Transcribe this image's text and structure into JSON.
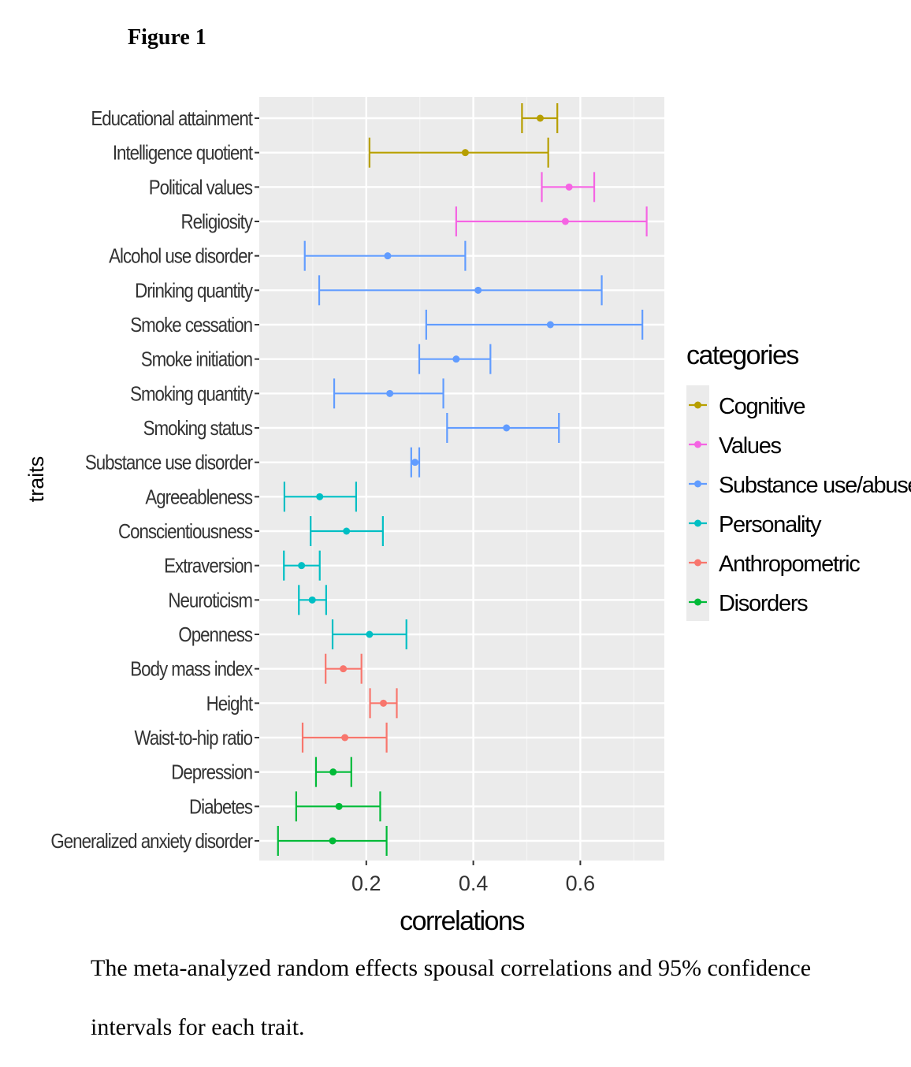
{
  "figure_title": "Figure 1",
  "caption_line1": "The meta-analyzed random effects spousal correlations and 95% confidence",
  "caption_line2": "intervals for each trait.",
  "chart_data": {
    "type": "forest",
    "xlabel": "correlations",
    "ylabel": "traits",
    "xlim": [
      0.0,
      0.757
    ],
    "xticks": [
      0.2,
      0.4,
      0.6
    ],
    "xtick_labels": [
      "0.2",
      "0.4",
      "0.6"
    ],
    "grid": true,
    "legend": {
      "title": "categories",
      "position": "right",
      "entries": [
        {
          "name": "Cognitive",
          "color": "#B79F00"
        },
        {
          "name": "Values",
          "color": "#F564E3"
        },
        {
          "name": "Substance use/abuse",
          "color": "#619CFF"
        },
        {
          "name": "Personality",
          "color": "#00BFC4"
        },
        {
          "name": "Anthropometric",
          "color": "#F8766D"
        },
        {
          "name": "Disorders",
          "color": "#00BA38"
        }
      ]
    },
    "rows": [
      {
        "trait": "Educational attainment",
        "category": "Cognitive",
        "estimate": 0.525,
        "lower": 0.491,
        "upper": 0.557
      },
      {
        "trait": "Intelligence quotient",
        "category": "Cognitive",
        "estimate": 0.385,
        "lower": 0.206,
        "upper": 0.54
      },
      {
        "trait": "Political values",
        "category": "Values",
        "estimate": 0.579,
        "lower": 0.528,
        "upper": 0.626
      },
      {
        "trait": "Religiosity",
        "category": "Values",
        "estimate": 0.572,
        "lower": 0.368,
        "upper": 0.724
      },
      {
        "trait": "Alcohol use disorder",
        "category": "Substance use/abuse",
        "estimate": 0.24,
        "lower": 0.085,
        "upper": 0.385
      },
      {
        "trait": "Drinking quantity",
        "category": "Substance use/abuse",
        "estimate": 0.409,
        "lower": 0.112,
        "upper": 0.64
      },
      {
        "trait": "Smoke cessation",
        "category": "Substance use/abuse",
        "estimate": 0.544,
        "lower": 0.312,
        "upper": 0.716
      },
      {
        "trait": "Smoke initiation",
        "category": "Substance use/abuse",
        "estimate": 0.368,
        "lower": 0.299,
        "upper": 0.432
      },
      {
        "trait": "Smoking quantity",
        "category": "Substance use/abuse",
        "estimate": 0.244,
        "lower": 0.14,
        "upper": 0.344
      },
      {
        "trait": "Smoking status",
        "category": "Substance use/abuse",
        "estimate": 0.462,
        "lower": 0.351,
        "upper": 0.56
      },
      {
        "trait": "Substance use disorder",
        "category": "Substance use/abuse",
        "estimate": 0.291,
        "lower": 0.284,
        "upper": 0.299
      },
      {
        "trait": "Agreeableness",
        "category": "Personality",
        "estimate": 0.113,
        "lower": 0.047,
        "upper": 0.181
      },
      {
        "trait": "Conscientiousness",
        "category": "Personality",
        "estimate": 0.163,
        "lower": 0.096,
        "upper": 0.231
      },
      {
        "trait": "Extraversion",
        "category": "Personality",
        "estimate": 0.079,
        "lower": 0.046,
        "upper": 0.113
      },
      {
        "trait": "Neuroticism",
        "category": "Personality",
        "estimate": 0.099,
        "lower": 0.074,
        "upper": 0.125
      },
      {
        "trait": "Openness",
        "category": "Personality",
        "estimate": 0.206,
        "lower": 0.137,
        "upper": 0.275
      },
      {
        "trait": "Body mass index",
        "category": "Anthropometric",
        "estimate": 0.157,
        "lower": 0.124,
        "upper": 0.191
      },
      {
        "trait": "Height",
        "category": "Anthropometric",
        "estimate": 0.232,
        "lower": 0.207,
        "upper": 0.257
      },
      {
        "trait": "Waist-to-hip ratio",
        "category": "Anthropometric",
        "estimate": 0.16,
        "lower": 0.081,
        "upper": 0.238
      },
      {
        "trait": "Depression",
        "category": "Disorders",
        "estimate": 0.138,
        "lower": 0.106,
        "upper": 0.172
      },
      {
        "trait": "Diabetes",
        "category": "Disorders",
        "estimate": 0.149,
        "lower": 0.069,
        "upper": 0.226
      },
      {
        "trait": "Generalized anxiety disorder",
        "category": "Disorders",
        "estimate": 0.137,
        "lower": 0.035,
        "upper": 0.238
      }
    ]
  }
}
